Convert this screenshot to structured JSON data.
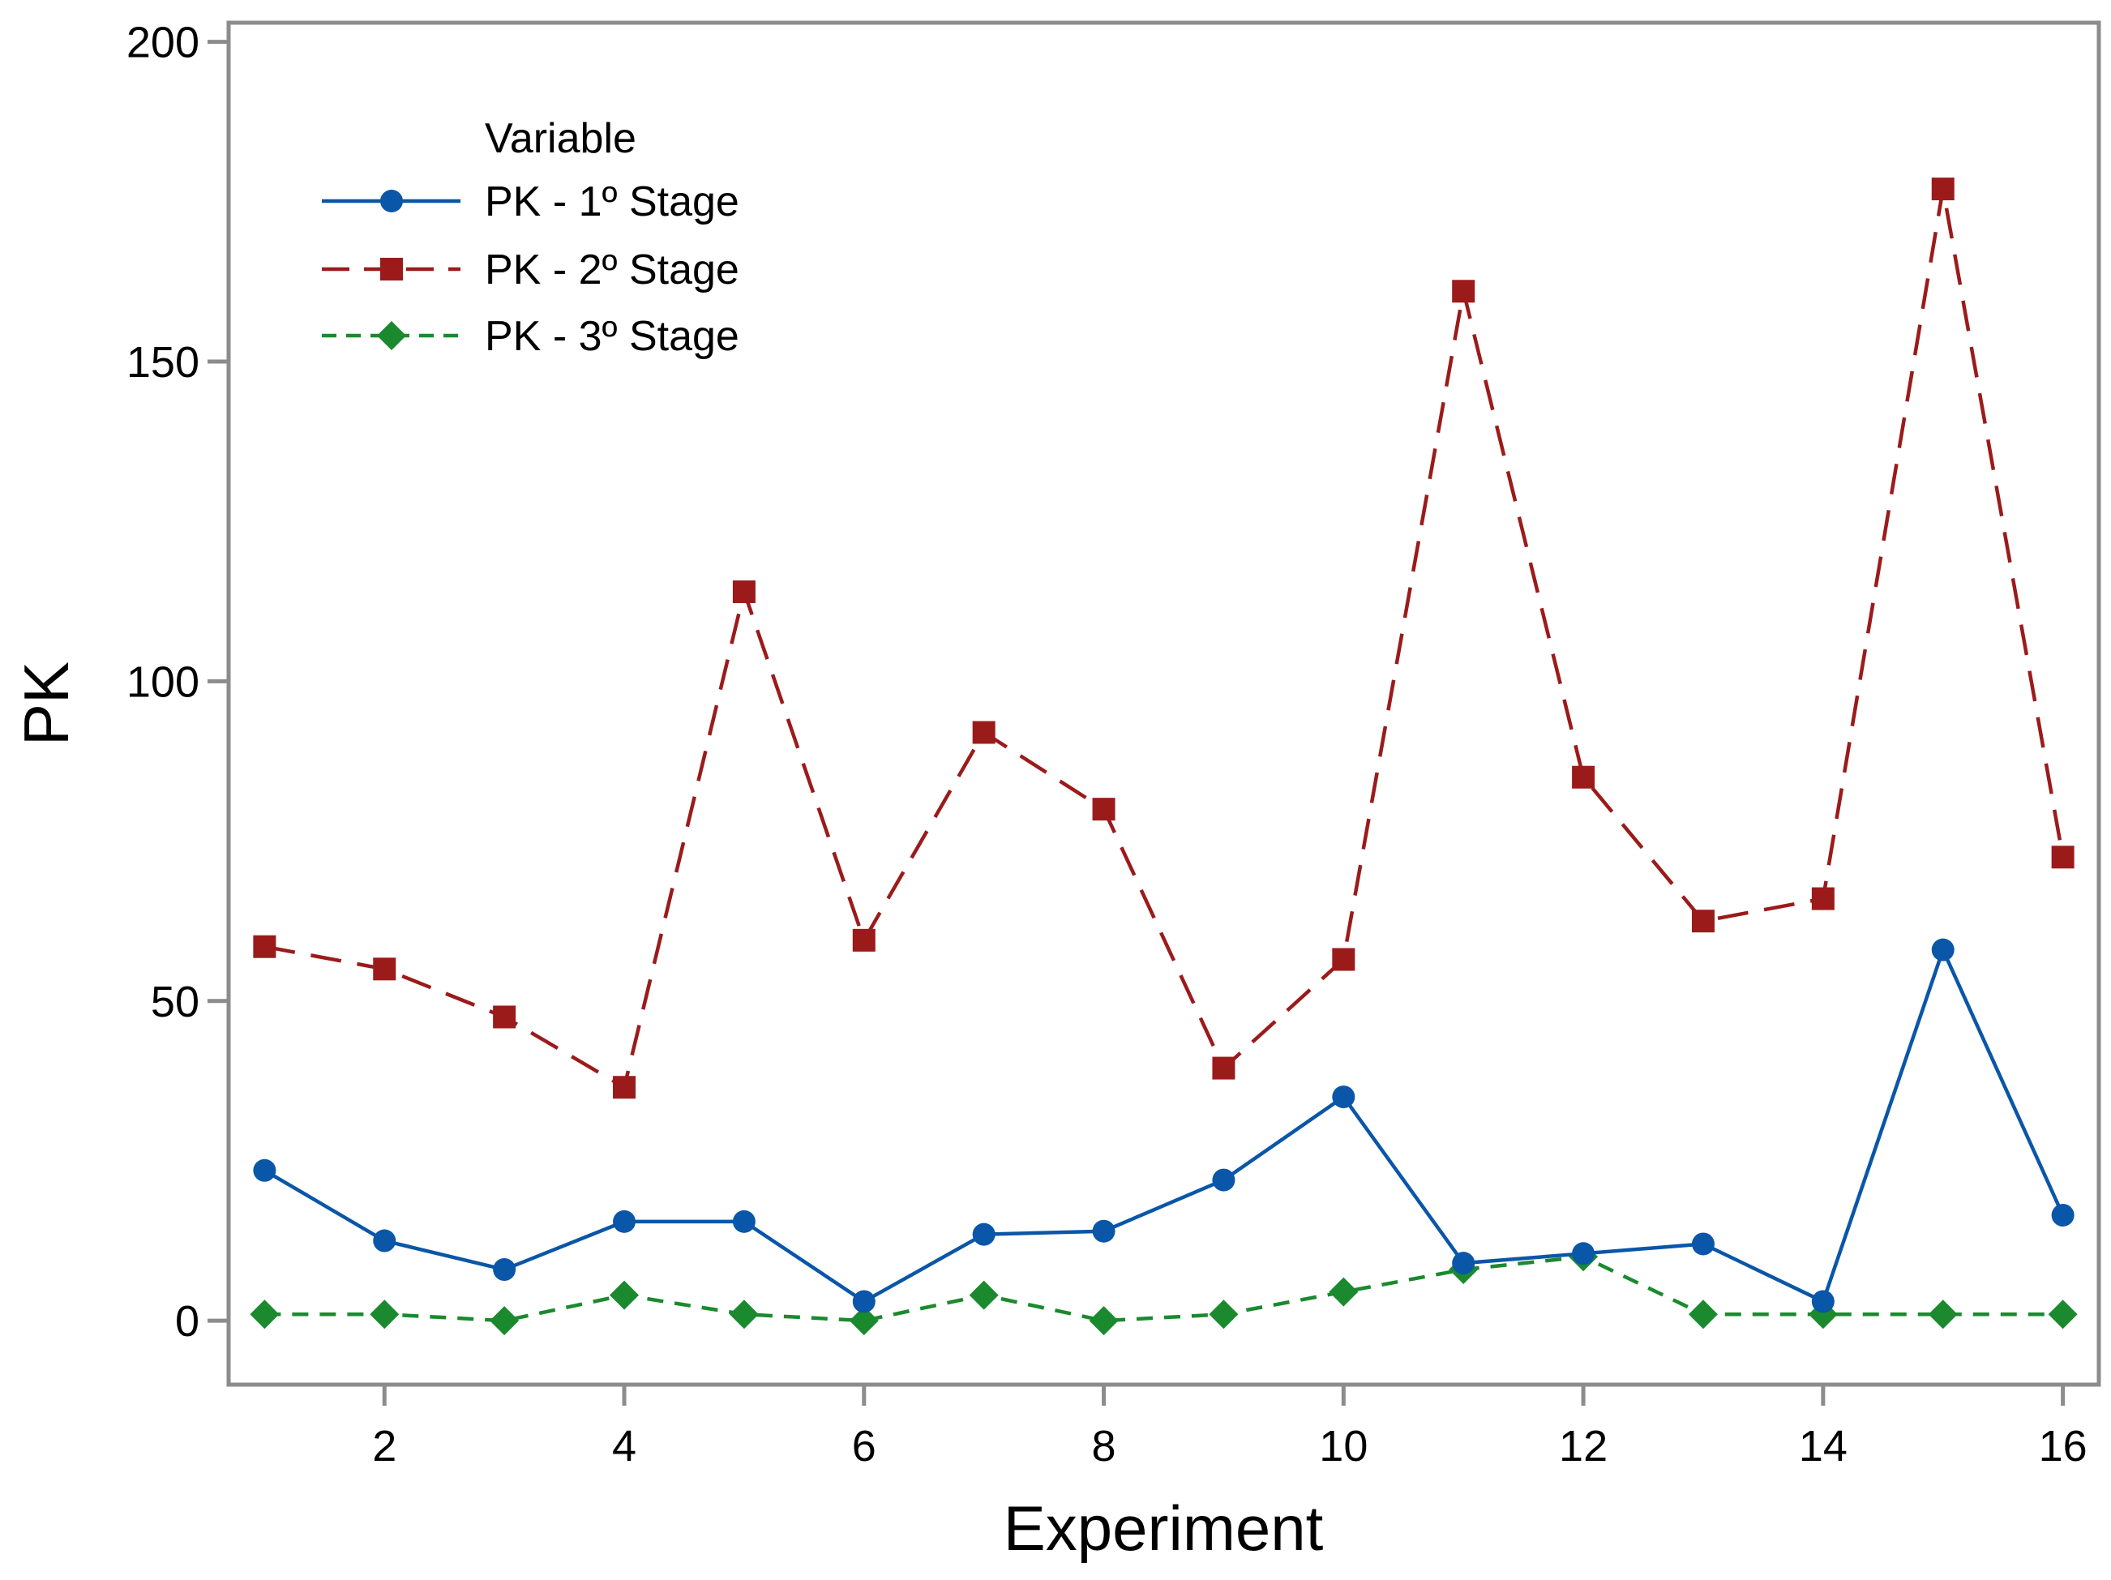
{
  "chart_data": {
    "type": "line",
    "title": "",
    "xlabel": "Experiment",
    "ylabel": "PK",
    "xlim": [
      0.7,
      16.3
    ],
    "ylim": [
      -10,
      203
    ],
    "x_ticks": [
      2,
      4,
      6,
      8,
      10,
      12,
      14,
      16
    ],
    "y_ticks": [
      0,
      50,
      100,
      150,
      200
    ],
    "grid": false,
    "legend": {
      "title": "Variable",
      "position": "top-left"
    },
    "x": [
      1,
      2,
      3,
      4,
      5,
      6,
      7,
      8,
      9,
      10,
      11,
      12,
      13,
      14,
      15,
      16
    ],
    "series": [
      {
        "name": "PK - 1º Stage",
        "color": "#0a56a8",
        "marker": "circle",
        "line_style": "solid",
        "values": [
          23.5,
          12.5,
          8.0,
          15.5,
          15.5,
          3.0,
          13.5,
          14.0,
          22.0,
          35.0,
          9.0,
          10.5,
          12.0,
          3.0,
          58.0,
          16.5
        ]
      },
      {
        "name": "PK - 2º Stage",
        "color": "#9b1b1b",
        "marker": "square",
        "line_style": "long-dash",
        "values": [
          58.5,
          55.0,
          47.5,
          36.5,
          114.0,
          59.5,
          92.0,
          80.0,
          39.5,
          56.5,
          161.0,
          85.0,
          62.5,
          66.0,
          177.0,
          72.5
        ]
      },
      {
        "name": "PK - 3º Stage",
        "color": "#1b8a2e",
        "marker": "diamond",
        "line_style": "short-dash",
        "values": [
          1.0,
          1.0,
          0.0,
          4.0,
          1.0,
          0.0,
          4.0,
          0.0,
          1.0,
          4.5,
          8.0,
          10.0,
          1.0,
          1.0,
          1.0,
          1.0
        ]
      }
    ]
  }
}
